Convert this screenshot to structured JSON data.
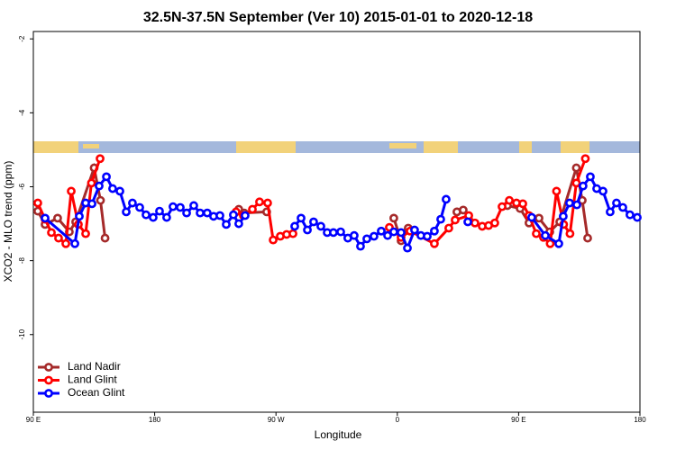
{
  "chart_data": {
    "type": "line",
    "title": "32.5N-37.5N September (Ver 10)   2015-01-01 to 2020-12-18",
    "x_label": "Longitude",
    "y_label": "XCO2 - MLO trend (ppm)",
    "xlim": [
      90,
      540
    ],
    "ylim": [
      -12.1,
      -1.8
    ],
    "xticks": [
      {
        "value": 90,
        "label": "90 E"
      },
      180,
      {
        "value": 270,
        "label": "90 W"
      },
      {
        "value": 360,
        "label": "0"
      },
      {
        "value": 450,
        "label": "90 E"
      },
      {
        "value": 540,
        "label": "180"
      }
    ],
    "yticks": [
      -2,
      -4,
      -6,
      -8,
      -10
    ],
    "legend": "bottom-left",
    "series": [
      {
        "name": "Land Nadir",
        "color": "#a52a2a",
        "x": [
          93.3,
          98.7,
          108.0,
          116.7,
          121.4,
          135.1,
          139.8,
          143.2,
          null,
          242.4,
          246.4,
          263.1,
          null,
          357.4,
          362.8,
          368.1,
          null,
          404.2,
          408.9,
          null,
          441.7,
          451.1,
          457.7,
          465.1,
          473.1,
          480.5,
          492.8,
          497.2,
          501.2
        ],
        "values": [
          -6.66,
          -7.02,
          -6.85,
          -7.22,
          -6.95,
          -5.49,
          -6.37,
          -7.39,
          null,
          -6.61,
          -6.71,
          -6.68,
          null,
          -6.85,
          -7.46,
          -7.12,
          null,
          -6.68,
          -6.63,
          null,
          -6.51,
          -6.59,
          -6.98,
          -6.85,
          -7.22,
          -6.95,
          -5.49,
          -6.37,
          -7.39
        ]
      },
      {
        "name": "Land Glint",
        "color": "#ff0000",
        "x": [
          93.3,
          98.7,
          103.4,
          108.7,
          114.1,
          118.1,
          123.4,
          128.8,
          133.1,
          139.5,
          null,
          240.4,
          245.8,
          252.5,
          257.8,
          263.8,
          267.9,
          273.2,
          277.9,
          282.6,
          null,
          354.1,
          362.8,
          369.5,
          387.5,
          398.2,
          402.9,
          413.0,
          417.6,
          423.0,
          427.7,
          432.3,
          437.7,
          443.1,
          448.4,
          453.1,
          457.7,
          463.1,
          468.4,
          473.4,
          478.1,
          483.4,
          488.1,
          492.8,
          499.5
        ],
        "values": [
          -6.44,
          -6.88,
          -7.24,
          -7.39,
          -7.54,
          -6.12,
          -7.02,
          -7.27,
          -5.9,
          -5.24,
          null,
          -6.68,
          -6.78,
          -6.61,
          -6.41,
          -6.44,
          -7.44,
          -7.34,
          -7.29,
          -7.27,
          null,
          -7.1,
          -7.37,
          -7.2,
          -7.54,
          -7.12,
          -6.9,
          -6.78,
          -6.98,
          -7.07,
          -7.05,
          -6.98,
          -6.54,
          -6.37,
          -6.44,
          -6.46,
          -6.78,
          -7.27,
          -7.37,
          -7.54,
          -6.12,
          -7.02,
          -7.27,
          -5.9,
          -5.24
        ]
      },
      {
        "name": "Ocean Glint",
        "color": "#0000ff",
        "x": [
          98.7,
          120.8,
          124.1,
          128.8,
          133.5,
          138.8,
          144.2,
          148.8,
          154.2,
          158.9,
          163.5,
          168.9,
          173.6,
          178.9,
          183.6,
          188.9,
          193.6,
          199.0,
          203.7,
          209.0,
          213.7,
          219.0,
          223.7,
          228.4,
          233.1,
          238.4,
          242.4,
          247.1,
          null,
          283.9,
          288.6,
          293.3,
          297.9,
          303.3,
          308.0,
          312.6,
          318.0,
          323.3,
          328.0,
          332.7,
          337.4,
          342.7,
          348.1,
          352.8,
          357.4,
          362.8,
          367.5,
          372.8,
          377.5,
          382.2,
          387.5,
          392.2,
          396.2,
          null,
          412.3,
          null,
          459.7,
          469.8,
          479.8,
          483.1,
          487.8,
          493.2,
          497.8,
          503.2,
          507.9,
          512.6,
          517.9,
          522.6,
          527.3,
          532.6,
          538.0
        ],
        "values": [
          -6.85,
          -7.54,
          -6.8,
          -6.44,
          -6.46,
          -5.98,
          -5.73,
          -6.05,
          -6.12,
          -6.68,
          -6.44,
          -6.56,
          -6.76,
          -6.83,
          -6.66,
          -6.83,
          -6.54,
          -6.56,
          -6.71,
          -6.51,
          -6.71,
          -6.71,
          -6.8,
          -6.78,
          -7.02,
          -6.76,
          -7.0,
          -6.78,
          null,
          -7.07,
          -6.85,
          -7.17,
          -6.95,
          -7.07,
          -7.24,
          -7.24,
          -7.22,
          -7.39,
          -7.32,
          -7.61,
          -7.41,
          -7.34,
          -7.2,
          -7.32,
          -7.22,
          -7.24,
          -7.66,
          -7.17,
          -7.32,
          -7.34,
          -7.2,
          -6.88,
          -6.34,
          null,
          -6.95,
          null,
          -6.83,
          -7.32,
          -7.54,
          -6.8,
          -6.44,
          -6.49,
          -5.98,
          -5.73,
          -6.05,
          -6.12,
          -6.68,
          -6.44,
          -6.56,
          -6.76,
          -6.83
        ]
      }
    ]
  }
}
